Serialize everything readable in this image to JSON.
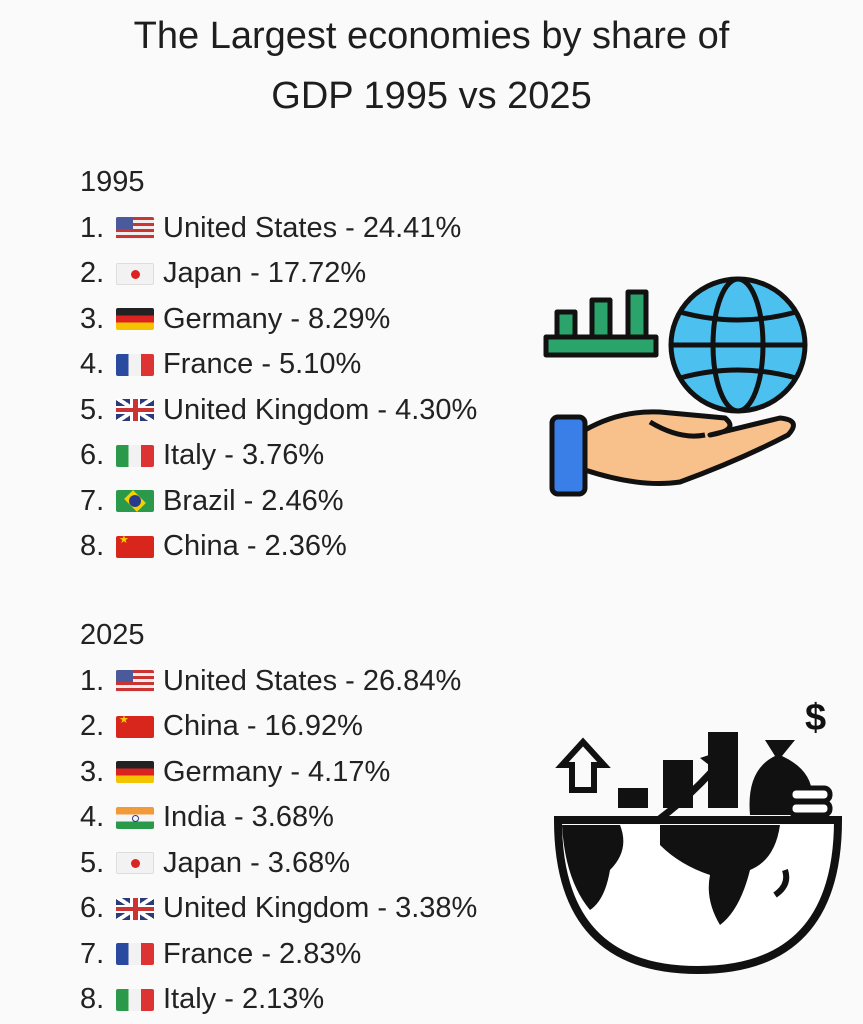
{
  "title": {
    "line1": "The Largest economies by share of",
    "line2": "GDP 1995 vs 2025"
  },
  "sections": [
    {
      "year": "1995",
      "items": [
        {
          "rank": "1.",
          "flag": "us",
          "text": "United States - 24.41%"
        },
        {
          "rank": "2.",
          "flag": "jp",
          "text": "Japan - 17.72%"
        },
        {
          "rank": "3.",
          "flag": "de",
          "text": "Germany - 8.29%"
        },
        {
          "rank": "4.",
          "flag": "fr",
          "text": "France - 5.10%"
        },
        {
          "rank": "5.",
          "flag": "gb",
          "text": "United Kingdom - 4.30%"
        },
        {
          "rank": "6.",
          "flag": "it",
          "text": "Italy - 3.76%"
        },
        {
          "rank": "7.",
          "flag": "br",
          "text": "Brazil - 2.46%"
        },
        {
          "rank": "8.",
          "flag": "cn",
          "text": "China - 2.36%"
        }
      ]
    },
    {
      "year": "2025",
      "items": [
        {
          "rank": "1.",
          "flag": "us",
          "text": "United States - 26.84%"
        },
        {
          "rank": "2.",
          "flag": "cn",
          "text": "China - 16.92%"
        },
        {
          "rank": "3.",
          "flag": "de",
          "text": "Germany - 4.17%"
        },
        {
          "rank": "4.",
          "flag": "in",
          "text": "India - 3.68%"
        },
        {
          "rank": "5.",
          "flag": "jp",
          "text": "Japan - 3.68%"
        },
        {
          "rank": "6.",
          "flag": "gb",
          "text": "United Kingdom - 3.38%"
        },
        {
          "rank": "7.",
          "flag": "fr",
          "text": "France - 2.83%"
        },
        {
          "rank": "8.",
          "flag": "it",
          "text": "Italy - 2.13%"
        }
      ]
    }
  ],
  "icons": {
    "top": "hand-globe-chart-icon",
    "bottom": "global-economy-growth-icon",
    "dollar_sign": "$"
  }
}
